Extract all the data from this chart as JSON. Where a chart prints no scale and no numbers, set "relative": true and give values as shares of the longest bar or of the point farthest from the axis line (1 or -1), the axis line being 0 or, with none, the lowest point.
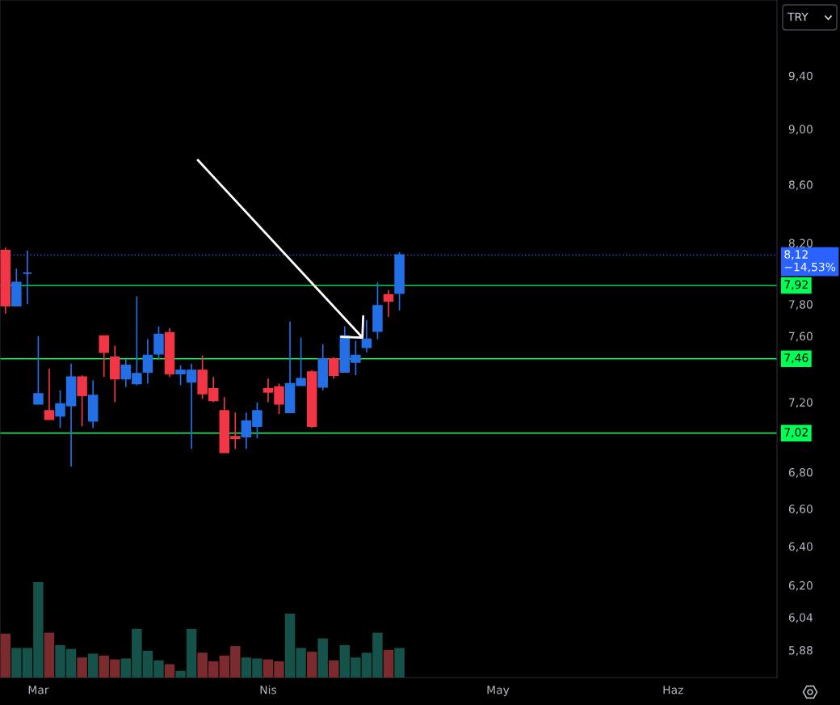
{
  "chart_data": [
    {
      "type": "candlestick",
      "log": "y",
      "categories": [
        null,
        null,
        null,
        "Mar",
        null,
        null,
        null,
        null,
        null,
        null,
        null,
        null,
        null,
        null,
        null,
        null,
        null,
        null,
        null,
        null,
        null,
        null,
        null,
        null,
        "Nis",
        null,
        null,
        null,
        null,
        null,
        null,
        null,
        null,
        null,
        null,
        null,
        null,
        null,
        null,
        null,
        null,
        null,
        null,
        null,
        null,
        "May",
        null,
        null,
        null,
        null,
        null,
        null,
        null,
        null,
        null,
        null,
        null,
        null,
        null,
        null,
        null,
        "Haz",
        null,
        null,
        null,
        null,
        null,
        null,
        null,
        null,
        null
      ],
      "ohlc": [
        [
          8.15,
          8.17,
          7.74,
          7.79
        ],
        [
          7.79,
          8.03,
          7.79,
          7.94
        ],
        [
          8.0,
          8.15,
          7.8,
          8.0
        ],
        [
          7.19,
          7.6,
          7.19,
          7.25
        ],
        [
          7.15,
          7.4,
          7.1,
          7.1
        ],
        [
          7.12,
          7.27,
          7.05,
          7.19
        ],
        [
          7.18,
          7.43,
          6.83,
          7.35
        ],
        [
          7.35,
          7.36,
          7.06,
          7.24
        ],
        [
          7.09,
          7.33,
          7.05,
          7.24
        ],
        [
          7.6,
          7.6,
          7.35,
          7.5
        ],
        [
          7.47,
          7.54,
          7.2,
          7.34
        ],
        [
          7.34,
          7.46,
          7.29,
          7.42
        ],
        [
          7.31,
          7.85,
          7.3,
          7.37
        ],
        [
          7.38,
          7.58,
          7.31,
          7.48
        ],
        [
          7.49,
          7.66,
          7.46,
          7.61
        ],
        [
          7.62,
          7.65,
          7.35,
          7.37
        ],
        [
          7.37,
          7.42,
          7.3,
          7.39
        ],
        [
          7.32,
          7.43,
          6.93,
          7.39
        ],
        [
          7.39,
          7.48,
          7.22,
          7.25
        ],
        [
          7.28,
          7.35,
          7.2,
          7.21
        ],
        [
          7.15,
          7.23,
          6.91,
          6.91
        ],
        [
          7.0,
          7.14,
          6.93,
          6.99
        ],
        [
          7.0,
          7.14,
          6.93,
          7.09
        ],
        [
          7.06,
          7.2,
          6.99,
          7.15
        ],
        [
          7.28,
          7.34,
          7.2,
          7.26
        ],
        [
          7.29,
          7.31,
          7.13,
          7.19
        ],
        [
          7.14,
          7.69,
          7.14,
          7.31
        ],
        [
          7.3,
          7.59,
          7.3,
          7.34
        ],
        [
          7.38,
          7.39,
          7.05,
          7.06
        ],
        [
          7.29,
          7.55,
          7.27,
          7.46
        ],
        [
          7.46,
          7.47,
          7.34,
          7.36
        ],
        [
          7.38,
          7.66,
          7.38,
          7.6
        ],
        [
          7.44,
          7.57,
          7.36,
          7.48
        ],
        [
          7.53,
          7.7,
          7.5,
          7.58
        ],
        [
          7.63,
          7.94,
          7.58,
          7.79
        ],
        [
          7.86,
          7.89,
          7.72,
          7.82
        ],
        [
          7.87,
          8.14,
          7.76,
          8.12
        ],
        null,
        null,
        null,
        null,
        null,
        null,
        null,
        null,
        null,
        null,
        null,
        null,
        null,
        null,
        null,
        null,
        null,
        null,
        null,
        null,
        null,
        null,
        null,
        null,
        null,
        null,
        null,
        null,
        null,
        null,
        null,
        null,
        null,
        null
      ],
      "colors": [
        "#f23645",
        "#2370e6",
        "#2370e6",
        "#2370e6",
        "#f23645",
        "#2370e6",
        "#2370e6",
        "#f23645",
        "#2370e6",
        "#f23645",
        "#f23645",
        "#2370e6",
        "#2370e6",
        "#2370e6",
        "#2370e6",
        "#f23645",
        "#2370e6",
        "#2370e6",
        "#f23645",
        "#f23645",
        "#f23645",
        "#f23645",
        "#2370e6",
        "#2370e6",
        "#f23645",
        "#f23645",
        "#2370e6",
        "#2370e6",
        "#f23645",
        "#2370e6",
        "#f23645",
        "#2370e6",
        "#2370e6",
        "#2370e6",
        "#2370e6",
        "#f23645",
        "#2370e6",
        null,
        null,
        null,
        null,
        null,
        null,
        null,
        null,
        null,
        null,
        null,
        null,
        null,
        null,
        null,
        null,
        null,
        null,
        null,
        null,
        null,
        null,
        null,
        null,
        null,
        null,
        null,
        null,
        null,
        null,
        null,
        null,
        null,
        null
      ],
      "ylim": [
        5.75,
        10.0
      ],
      "yticks": [
        {
          "value": 5.88,
          "label": "5,88"
        },
        {
          "value": 6.04,
          "label": "6,04"
        },
        {
          "value": 6.2,
          "label": "6,20"
        },
        {
          "value": 6.4,
          "label": "6,40"
        },
        {
          "value": 6.6,
          "label": "6,60"
        },
        {
          "value": 6.8,
          "label": "6,80"
        },
        {
          "value": 7.2,
          "label": "7,20"
        },
        {
          "value": 7.6,
          "label": "7,60"
        },
        {
          "value": 7.8,
          "label": "7,80"
        },
        {
          "value": 8.2,
          "label": "8,20"
        },
        {
          "value": 8.6,
          "label": "8,60"
        },
        {
          "value": 9.0,
          "label": "9,00"
        },
        {
          "value": 9.4,
          "label": "9,40"
        }
      ],
      "ref_lines": [
        {
          "axis": "y",
          "value": 8.12,
          "label": "8,12\n−14,53%",
          "color": "#2962ff",
          "line_style": "dotted"
        },
        {
          "axis": "y",
          "value": 7.92,
          "label": "7,92",
          "color": "#00ff55",
          "line_style": "solid"
        },
        {
          "axis": "y",
          "value": 7.46,
          "label": "7,46",
          "color": "#00ff55",
          "line_style": "solid"
        },
        {
          "axis": "y",
          "value": 7.02,
          "label": "7,02",
          "color": "#00ff55",
          "line_style": "solid"
        }
      ],
      "annotations": [
        "TRY"
      ]
    },
    {
      "type": "bar",
      "relative": true,
      "categories": [
        null,
        null,
        null,
        null,
        null,
        null,
        null,
        null,
        null,
        null,
        null,
        null,
        null,
        null,
        null,
        null,
        null,
        null,
        null,
        null,
        null,
        null,
        null,
        null,
        null,
        null,
        null,
        null,
        null,
        null,
        null,
        null,
        null,
        null,
        null,
        null,
        null,
        null,
        null,
        null,
        null,
        null,
        null,
        null,
        null,
        null,
        null,
        null,
        null,
        null,
        null,
        null,
        null,
        null,
        null,
        null,
        null,
        null,
        null,
        null,
        null,
        null,
        null,
        null,
        null,
        null,
        null,
        null,
        null,
        null,
        null
      ],
      "values": [
        0.46,
        0.31,
        0.31,
        1.0,
        0.47,
        0.34,
        0.3,
        0.21,
        0.25,
        0.23,
        0.19,
        0.2,
        0.51,
        0.28,
        0.18,
        0.14,
        0.07,
        0.51,
        0.26,
        0.17,
        0.23,
        0.33,
        0.21,
        0.2,
        0.19,
        0.17,
        0.67,
        0.31,
        0.27,
        0.41,
        0.18,
        0.34,
        0.21,
        0.26,
        0.47,
        0.29,
        0.31,
        null,
        null,
        null,
        null,
        null,
        null,
        null,
        null,
        null,
        null,
        null,
        null,
        null,
        null,
        null,
        null,
        null,
        null,
        null,
        null,
        null,
        null,
        null,
        null,
        null,
        null,
        null,
        null,
        null,
        null,
        null,
        null,
        null,
        null
      ],
      "colors": [
        "#7b2b2d",
        "#14524a",
        "#14524a",
        "#14524a",
        "#7b2b2d",
        "#14524a",
        "#14524a",
        "#7b2b2d",
        "#14524a",
        "#7b2b2d",
        "#7b2b2d",
        "#14524a",
        "#14524a",
        "#14524a",
        "#14524a",
        "#7b2b2d",
        "#14524a",
        "#14524a",
        "#7b2b2d",
        "#7b2b2d",
        "#7b2b2d",
        "#7b2b2d",
        "#14524a",
        "#14524a",
        "#7b2b2d",
        "#7b2b2d",
        "#14524a",
        "#14524a",
        "#7b2b2d",
        "#14524a",
        "#7b2b2d",
        "#14524a",
        "#14524a",
        "#14524a",
        "#14524a",
        "#7b2b2d",
        "#14524a",
        null,
        null,
        null,
        null,
        null,
        null,
        null,
        null,
        null,
        null,
        null,
        null,
        null,
        null,
        null,
        null,
        null,
        null,
        null,
        null,
        null,
        null,
        null,
        null,
        null,
        null,
        null,
        null,
        null,
        null,
        null,
        null,
        null,
        null
      ]
    }
  ]
}
